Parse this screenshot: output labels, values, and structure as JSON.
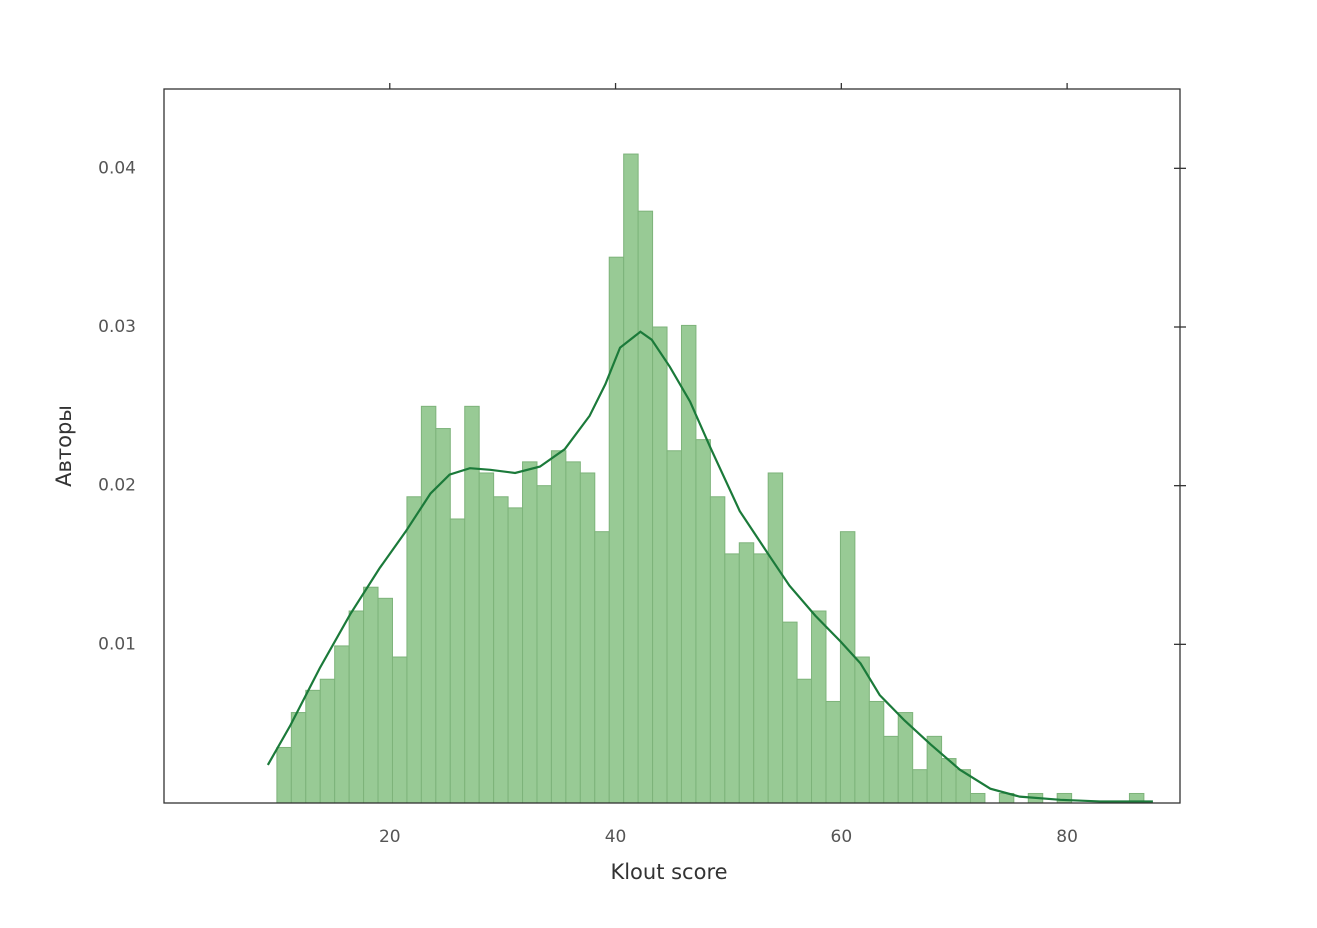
{
  "chart_data": {
    "type": "histogram",
    "xlabel": "Klout score",
    "ylabel": "Авторы",
    "bins": [
      10,
      11.28,
      12.56,
      13.84,
      15.12,
      16.4,
      17.68,
      18.96,
      20.24,
      21.52,
      22.8,
      24.08,
      25.36,
      26.64,
      27.92,
      29.2,
      30.48,
      31.76,
      33.04,
      34.32,
      35.6,
      36.88,
      38.16,
      39.44,
      40.72,
      42,
      43.28,
      44.56,
      45.84,
      47.12,
      48.4,
      49.68,
      50.96,
      52.24,
      53.52,
      54.8,
      56.08,
      57.36,
      58.64,
      59.92,
      61.2,
      62.48,
      63.76,
      65.04,
      66.32,
      67.6,
      68.88,
      70.16,
      71.44,
      72.72,
      74,
      75.28,
      76.56,
      77.84,
      79.12,
      80.4,
      81.68,
      82.96,
      84.24,
      85.52,
      86.8
    ],
    "counts": [
      0.0035,
      0.0057,
      0.0071,
      0.0078,
      0.0099,
      0.0121,
      0.0136,
      0.0129,
      0.0092,
      0.0193,
      0.025,
      0.0236,
      0.0179,
      0.025,
      0.0208,
      0.0193,
      0.0186,
      0.0215,
      0.02,
      0.0222,
      0.0215,
      0.0208,
      0.0171,
      0.0344,
      0.0409,
      0.0373,
      0.03,
      0.0222,
      0.0301,
      0.0229,
      0.0193,
      0.0157,
      0.0164,
      0.0157,
      0.0208,
      0.0114,
      0.0078,
      0.0121,
      0.0064,
      0.0171,
      0.0092,
      0.0064,
      0.0042,
      0.0057,
      0.0021,
      0.0042,
      0.0028,
      0.0021,
      0.0006,
      0,
      0.0006,
      0,
      0.0006,
      0,
      0.0006,
      0,
      0,
      0,
      0,
      0.0006
    ],
    "color": "#98ca95",
    "edgecolor": "#7db37a",
    "line": {
      "color": "#1b7a3a",
      "x": [
        9.2,
        11.2,
        13.8,
        16.5,
        19.1,
        21.4,
        23.6,
        25.3,
        27.1,
        28.9,
        31.1,
        33.3,
        35.5,
        37.7,
        39.1,
        40.4,
        42.2,
        43.2,
        44.8,
        46.6,
        48.4,
        51.0,
        53.7,
        55.4,
        57.7,
        59.9,
        61.7,
        63.4,
        65.6,
        67.9,
        70.5,
        73.2,
        75.8,
        79.4,
        82.9,
        87.6
      ],
      "values": [
        0.0024,
        0.0049,
        0.0085,
        0.0119,
        0.0148,
        0.0171,
        0.0195,
        0.0207,
        0.0211,
        0.021,
        0.0208,
        0.0212,
        0.0223,
        0.0244,
        0.0264,
        0.0287,
        0.0297,
        0.0292,
        0.0275,
        0.0253,
        0.0224,
        0.0184,
        0.0155,
        0.0137,
        0.0118,
        0.0102,
        0.0088,
        0.0068,
        0.0052,
        0.0037,
        0.0021,
        0.0009,
        0.0004,
        0.0002,
        0.0001,
        0.0001
      ]
    },
    "xlim": [
      0,
      90
    ],
    "ylim": [
      0,
      0.045
    ],
    "xticks": [
      20,
      40,
      60,
      80
    ],
    "yticks": [
      0.01,
      0.02,
      0.03,
      0.04
    ]
  }
}
